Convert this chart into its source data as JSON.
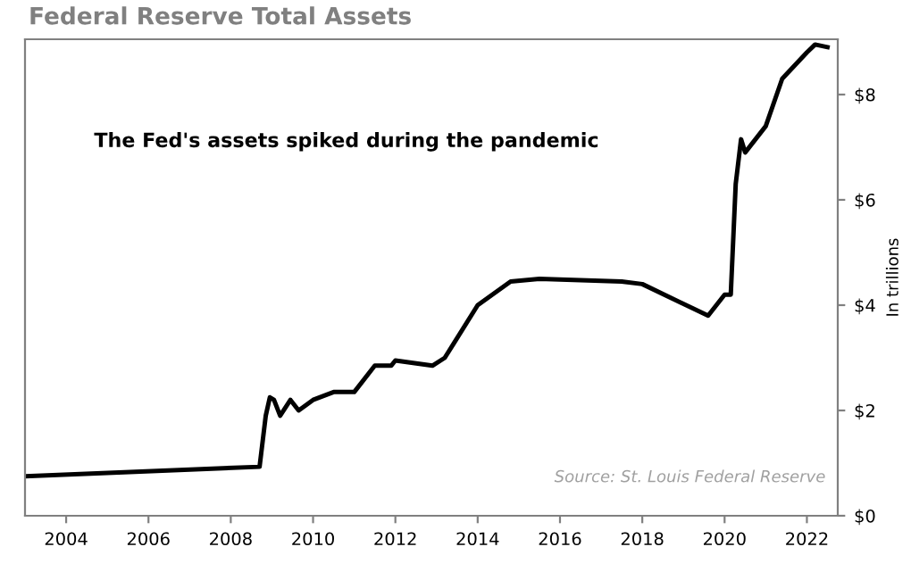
{
  "chart_data": {
    "type": "line",
    "title": "Federal Reserve Total Assets",
    "ylabel": "In trillions",
    "annotations": [
      "The Fed's assets spiked during the pandemic",
      "Source: St. Louis Federal Reserve"
    ],
    "x": [
      2003.0,
      2008.7,
      2008.85,
      2008.95,
      2009.05,
      2009.2,
      2009.45,
      2009.65,
      2010.0,
      2010.5,
      2011.0,
      2011.5,
      2011.9,
      2012.0,
      2012.9,
      2013.2,
      2014.0,
      2014.8,
      2015.5,
      2017.5,
      2018.0,
      2019.6,
      2019.8,
      2020.0,
      2020.15,
      2020.27,
      2020.4,
      2020.5,
      2021.0,
      2021.4,
      2022.0,
      2022.2,
      2022.5
    ],
    "series": [
      {
        "color": "#000000",
        "values": [
          0.75,
          0.93,
          1.9,
          2.25,
          2.2,
          1.9,
          2.2,
          2.0,
          2.2,
          2.35,
          2.35,
          2.85,
          2.85,
          2.95,
          2.85,
          3.0,
          4.0,
          4.45,
          4.5,
          4.45,
          4.4,
          3.8,
          4.0,
          4.2,
          4.2,
          6.3,
          7.15,
          6.9,
          7.4,
          8.3,
          8.8,
          8.95,
          8.9
        ]
      }
    ],
    "xlim": [
      2003.0,
      2022.75
    ],
    "ylim": [
      0,
      9.05
    ],
    "xticks": [
      2004,
      2006,
      2008,
      2010,
      2012,
      2014,
      2016,
      2018,
      2020,
      2022
    ],
    "yticks": [
      {
        "value": 0,
        "label": "$0"
      },
      {
        "value": 2,
        "label": "$2"
      },
      {
        "value": 4,
        "label": "$4"
      },
      {
        "value": 6,
        "label": "$6"
      },
      {
        "value": 8,
        "label": "$8"
      }
    ],
    "grid": false,
    "legend": false,
    "marker": "none",
    "line_style": "solid"
  }
}
